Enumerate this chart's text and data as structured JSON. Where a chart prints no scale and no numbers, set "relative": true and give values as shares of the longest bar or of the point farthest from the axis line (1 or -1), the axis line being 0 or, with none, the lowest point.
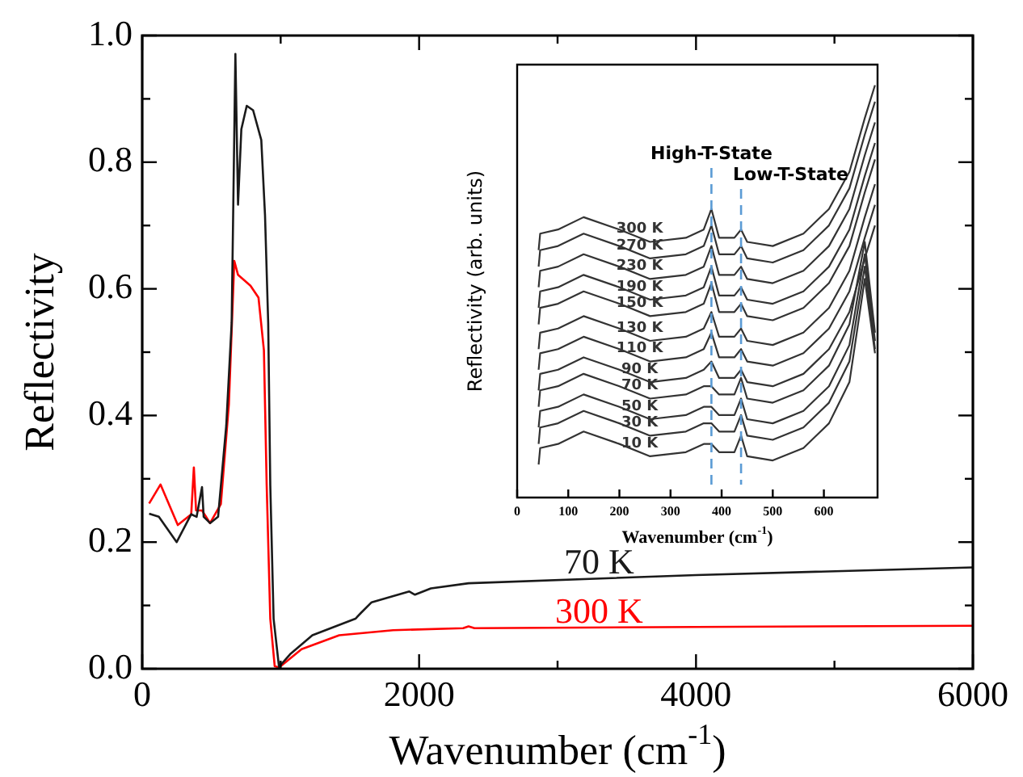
{
  "chart_data": [
    {
      "type": "line",
      "xlabel": "Wavenumber (cm$^{-1}$)",
      "ylabel": "Reflectivity",
      "xlim": [
        0,
        6000
      ],
      "xticks": [
        0,
        {
          "value": 1000,
          "label": null
        },
        2000,
        {
          "value": 3000,
          "label": null
        },
        4000,
        {
          "value": 5000,
          "label": null
        },
        6000
      ],
      "ylim": [
        0,
        1
      ],
      "yticks": [
        {
          "value": 0,
          "label": "0.0"
        },
        {
          "value": 0.1,
          "label": null
        },
        {
          "value": 0.2,
          "label": "0.2"
        },
        {
          "value": 0.3,
          "label": null
        },
        {
          "value": 0.4,
          "label": "0.4"
        },
        {
          "value": 0.5,
          "label": null
        },
        {
          "value": 0.6,
          "label": "0.6"
        },
        {
          "value": 0.7,
          "label": null
        },
        {
          "value": 0.8,
          "label": "0.8"
        },
        {
          "value": 0.9,
          "label": null
        },
        {
          "value": 1.0,
          "label": "1.0"
        }
      ],
      "series": [
        {
          "name": "70 K",
          "color": "#1a1a1a",
          "x": [
            50,
            120,
            249,
            354,
            393,
            432,
            444,
            490,
            548,
            607,
            646,
            673,
            692,
            716,
            755,
            801,
            860,
            887,
            910,
            925,
            949,
            988,
            1073,
            1229,
            1540,
            1579,
            1657,
            1929,
            1970,
            2085,
            2357,
            4000,
            6000
          ],
          "values": [
            0.245,
            0.24,
            0.2,
            0.244,
            0.24,
            0.287,
            0.24,
            0.23,
            0.24,
            0.384,
            0.546,
            0.971,
            0.733,
            0.852,
            0.889,
            0.882,
            0.835,
            0.716,
            0.546,
            0.29,
            0.079,
            0.003,
            0.024,
            0.053,
            0.079,
            0.088,
            0.105,
            0.122,
            0.117,
            0.127,
            0.135,
            0.148,
            0.16
          ]
        },
        {
          "name": "300 K",
          "color": "#ff0000",
          "x": [
            50,
            132,
            257,
            354,
            373,
            389,
            432,
            490,
            568,
            626,
            665,
            692,
            782,
            840,
            879,
            899,
            925,
            957,
            988,
            1151,
            1423,
            1812,
            2318,
            2357,
            2400,
            4000,
            6000
          ],
          "values": [
            0.261,
            0.291,
            0.227,
            0.244,
            0.318,
            0.25,
            0.25,
            0.23,
            0.26,
            0.418,
            0.644,
            0.622,
            0.605,
            0.586,
            0.503,
            0.29,
            0.079,
            0.004,
            0.002,
            0.031,
            0.053,
            0.061,
            0.064,
            0.067,
            0.064,
            0.066,
            0.068
          ]
        }
      ]
    },
    {
      "type": "line",
      "relative": true,
      "xlabel": "Wavenumber (cm$^{-1}$)",
      "ylabel": "Reflectivity (arb. units)",
      "xlim": [
        0,
        705
      ],
      "xticks": [
        0,
        100,
        200,
        300,
        400,
        500,
        600
      ],
      "x": [
        42,
        45,
        80,
        130,
        200,
        260,
        330,
        365,
        380,
        395,
        425,
        438,
        450,
        500,
        560,
        610,
        650,
        680,
        700
      ],
      "ref_lines": [
        {
          "axis": "x",
          "value": 380,
          "label": "High-T-State",
          "color": "#5b9bd5",
          "line_style": "dashed"
        },
        {
          "axis": "x",
          "value": 438,
          "label": "Low-T-State",
          "color": "#5b9bd5",
          "line_style": "dashed"
        }
      ],
      "series": [
        {
          "name": "300 K",
          "color": "#333333",
          "values": [
            0.6,
            0.64,
            0.65,
            0.68,
            0.65,
            0.62,
            0.63,
            0.65,
            0.7,
            0.63,
            0.63,
            0.65,
            0.62,
            0.61,
            0.64,
            0.7,
            0.79,
            0.92,
            1.0
          ]
        },
        {
          "name": "270 K",
          "color": "#333333",
          "values": [
            0.56,
            0.6,
            0.61,
            0.64,
            0.61,
            0.58,
            0.59,
            0.61,
            0.66,
            0.59,
            0.59,
            0.61,
            0.58,
            0.57,
            0.6,
            0.66,
            0.75,
            0.88,
            0.96
          ]
        },
        {
          "name": "230 K",
          "color": "#333333",
          "values": [
            0.51,
            0.55,
            0.56,
            0.59,
            0.56,
            0.53,
            0.54,
            0.56,
            0.61,
            0.54,
            0.54,
            0.56,
            0.53,
            0.52,
            0.55,
            0.61,
            0.7,
            0.83,
            0.91
          ]
        },
        {
          "name": "190 K",
          "color": "#333333",
          "values": [
            0.46,
            0.5,
            0.51,
            0.54,
            0.51,
            0.48,
            0.49,
            0.51,
            0.56,
            0.49,
            0.49,
            0.51,
            0.48,
            0.47,
            0.5,
            0.56,
            0.65,
            0.78,
            0.86
          ]
        },
        {
          "name": "150 K",
          "color": "#333333",
          "values": [
            0.42,
            0.46,
            0.47,
            0.5,
            0.47,
            0.44,
            0.45,
            0.47,
            0.52,
            0.45,
            0.45,
            0.47,
            0.44,
            0.43,
            0.46,
            0.52,
            0.61,
            0.74,
            0.82
          ]
        },
        {
          "name": "130 K",
          "color": "#333333",
          "values": [
            0.36,
            0.4,
            0.41,
            0.44,
            0.41,
            0.38,
            0.39,
            0.41,
            0.45,
            0.39,
            0.39,
            0.41,
            0.38,
            0.37,
            0.4,
            0.46,
            0.55,
            0.68,
            0.76
          ]
        },
        {
          "name": "110 K",
          "color": "#333333",
          "values": [
            0.31,
            0.35,
            0.36,
            0.39,
            0.36,
            0.33,
            0.34,
            0.36,
            0.4,
            0.34,
            0.34,
            0.36,
            0.33,
            0.32,
            0.35,
            0.41,
            0.5,
            0.63,
            0.71
          ]
        },
        {
          "name": "90 K",
          "color": "#333333",
          "values": [
            0.26,
            0.3,
            0.31,
            0.34,
            0.31,
            0.28,
            0.29,
            0.31,
            0.33,
            0.29,
            0.29,
            0.31,
            0.28,
            0.27,
            0.3,
            0.36,
            0.45,
            0.58,
            0.66
          ]
        },
        {
          "name": "70 K",
          "color": "#333333",
          "values": [
            0.22,
            0.26,
            0.27,
            0.3,
            0.27,
            0.24,
            0.25,
            0.27,
            0.27,
            0.25,
            0.25,
            0.29,
            0.24,
            0.23,
            0.26,
            0.32,
            0.42,
            0.62,
            0.4
          ]
        },
        {
          "name": "50 K",
          "color": "#333333",
          "values": [
            0.17,
            0.21,
            0.22,
            0.25,
            0.22,
            0.19,
            0.2,
            0.22,
            0.22,
            0.2,
            0.2,
            0.24,
            0.19,
            0.18,
            0.21,
            0.27,
            0.37,
            0.59,
            0.38
          ]
        },
        {
          "name": "30 K",
          "color": "#333333",
          "values": [
            0.13,
            0.17,
            0.18,
            0.21,
            0.18,
            0.15,
            0.16,
            0.18,
            0.18,
            0.16,
            0.16,
            0.2,
            0.15,
            0.14,
            0.17,
            0.23,
            0.33,
            0.56,
            0.36
          ]
        },
        {
          "name": "10 K",
          "color": "#333333",
          "values": [
            0.08,
            0.12,
            0.13,
            0.16,
            0.13,
            0.1,
            0.11,
            0.13,
            0.13,
            0.11,
            0.11,
            0.15,
            0.1,
            0.09,
            0.12,
            0.18,
            0.28,
            0.53,
            0.35
          ]
        }
      ]
    }
  ]
}
